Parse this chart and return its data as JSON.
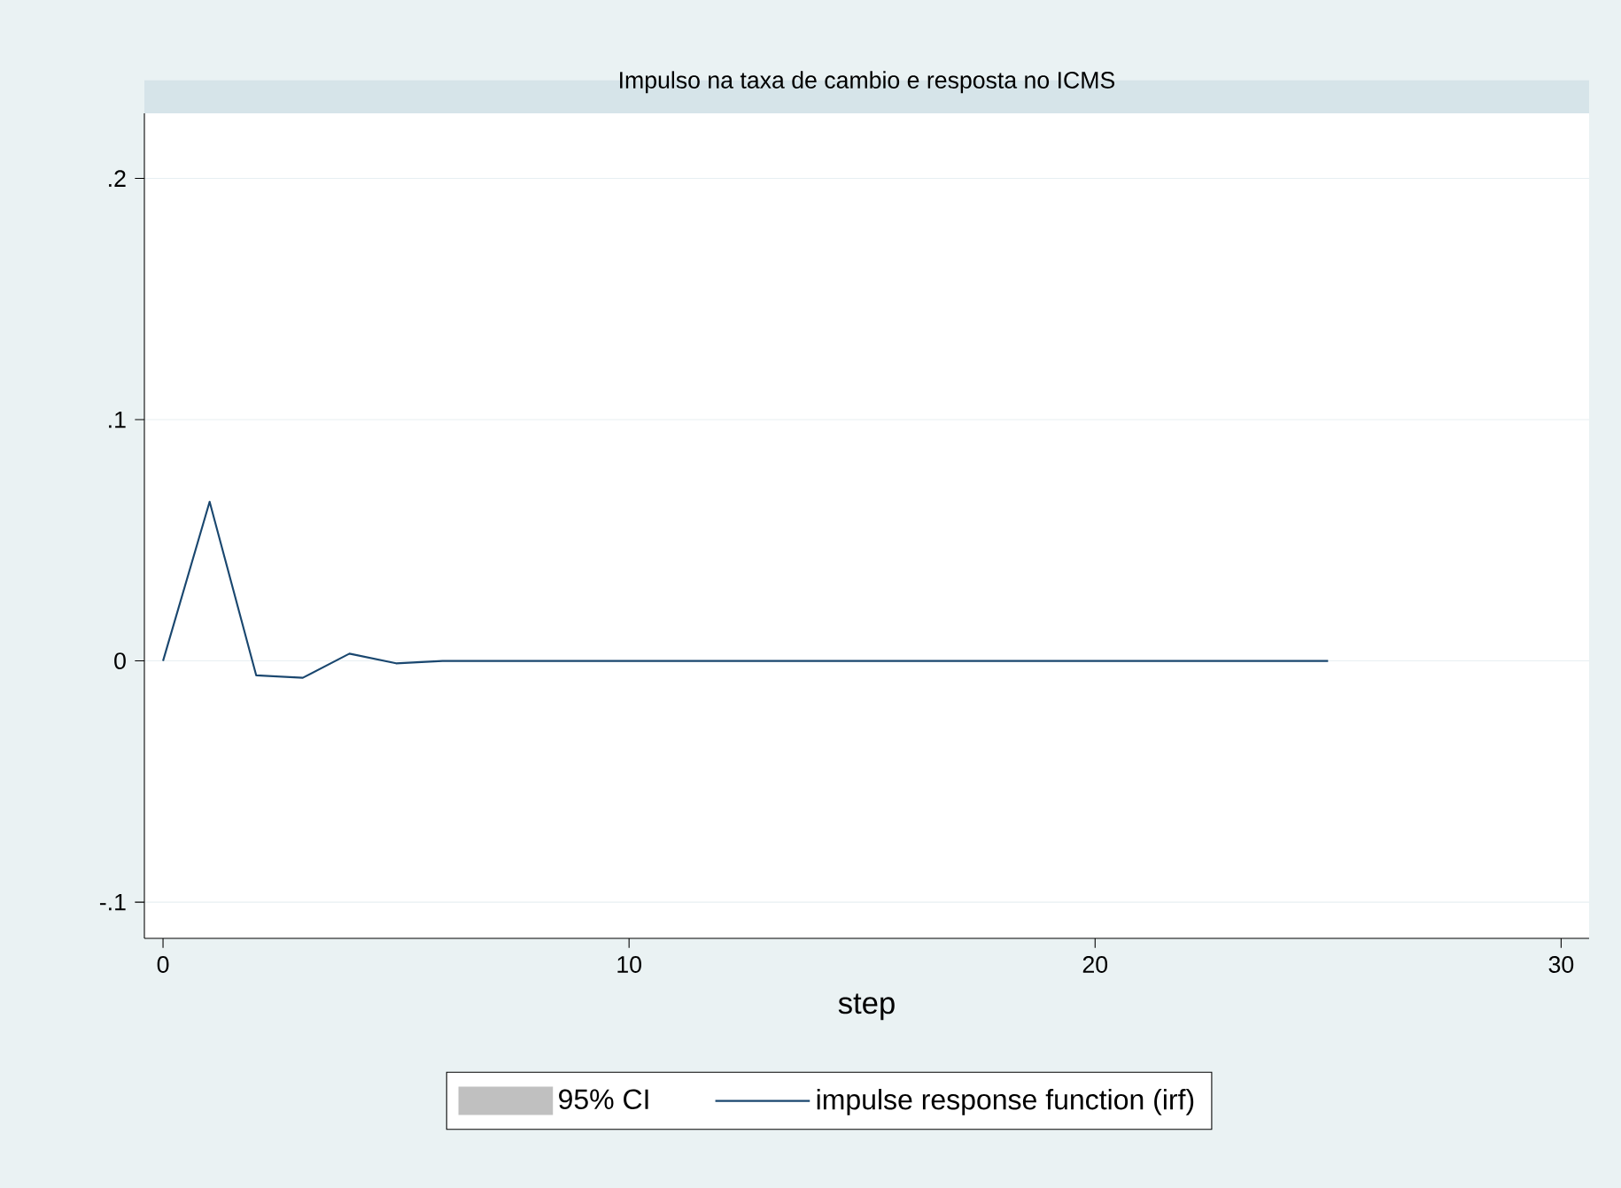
{
  "chart_data": {
    "type": "line",
    "title": "Impulso na taxa de cambio e resposta no ICMS",
    "xlabel": "step",
    "x": [
      0,
      1,
      2,
      3,
      4,
      5,
      6,
      7,
      8,
      9,
      10,
      11,
      12,
      13,
      14,
      15,
      16,
      17,
      18,
      19,
      20,
      21,
      22,
      23,
      24,
      25
    ],
    "series": [
      {
        "name": "95% CI",
        "type": "area",
        "color": "#c0c0c0",
        "values": [
          null,
          null,
          null,
          null,
          null,
          null,
          null,
          null,
          null,
          null,
          null,
          null,
          null,
          null,
          null,
          null,
          null,
          null,
          null,
          null,
          null,
          null,
          null,
          null,
          null,
          null
        ]
      },
      {
        "name": "impulse response function (irf)",
        "color": "#1a476f",
        "values": [
          0,
          0.066,
          -0.006,
          -0.007,
          0.003,
          -0.001,
          0,
          0,
          0,
          0,
          0,
          0,
          0,
          0,
          0,
          0,
          0,
          0,
          0,
          0,
          0,
          0,
          0,
          0,
          0,
          0
        ]
      }
    ],
    "xlim": [
      -0.4,
      30.6
    ],
    "ylim": [
      -0.115,
      0.227
    ],
    "xticks": [
      0,
      10,
      20,
      30
    ],
    "yticks": [
      {
        "value": -0.1,
        "label": "-.1"
      },
      {
        "value": 0,
        "label": "0"
      },
      {
        "value": 0.1,
        "label": ".1"
      },
      {
        "value": 0.2,
        "label": ".2"
      }
    ],
    "grid": "y",
    "legend": "bottom",
    "marker": "none",
    "line_style": "solid"
  }
}
